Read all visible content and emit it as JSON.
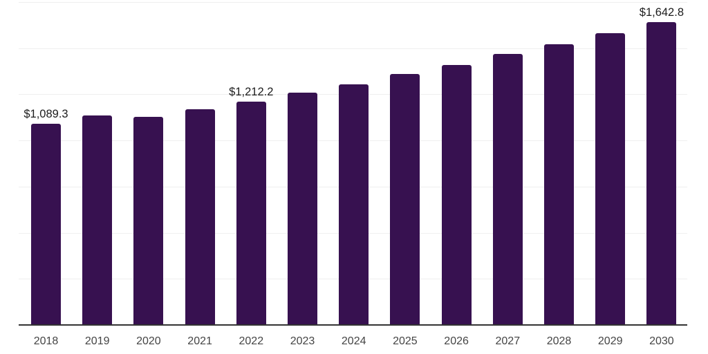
{
  "chart_data": {
    "type": "bar",
    "categories": [
      "2018",
      "2019",
      "2020",
      "2021",
      "2022",
      "2023",
      "2024",
      "2025",
      "2026",
      "2027",
      "2028",
      "2029",
      "2030"
    ],
    "values": [
      1089.3,
      1137,
      1129,
      1168,
      1212.2,
      1260,
      1306,
      1359,
      1409,
      1469,
      1521,
      1583,
      1642.8
    ],
    "point_labels": {
      "2018": "$1,089.3",
      "2022": "$1,212.2",
      "2030": "$1,642.8"
    },
    "ylim": [
      0,
      1750
    ],
    "gridline_step": 250,
    "grid": "horizontal",
    "legend": "none",
    "y_axis_tick_labels": "none",
    "colors": {
      "background": "#ffffff",
      "bar": "#371150",
      "axis": "#333333",
      "gridline": "#efefef",
      "data_label": "#1c1c1c",
      "tick_label": "#444444"
    }
  }
}
